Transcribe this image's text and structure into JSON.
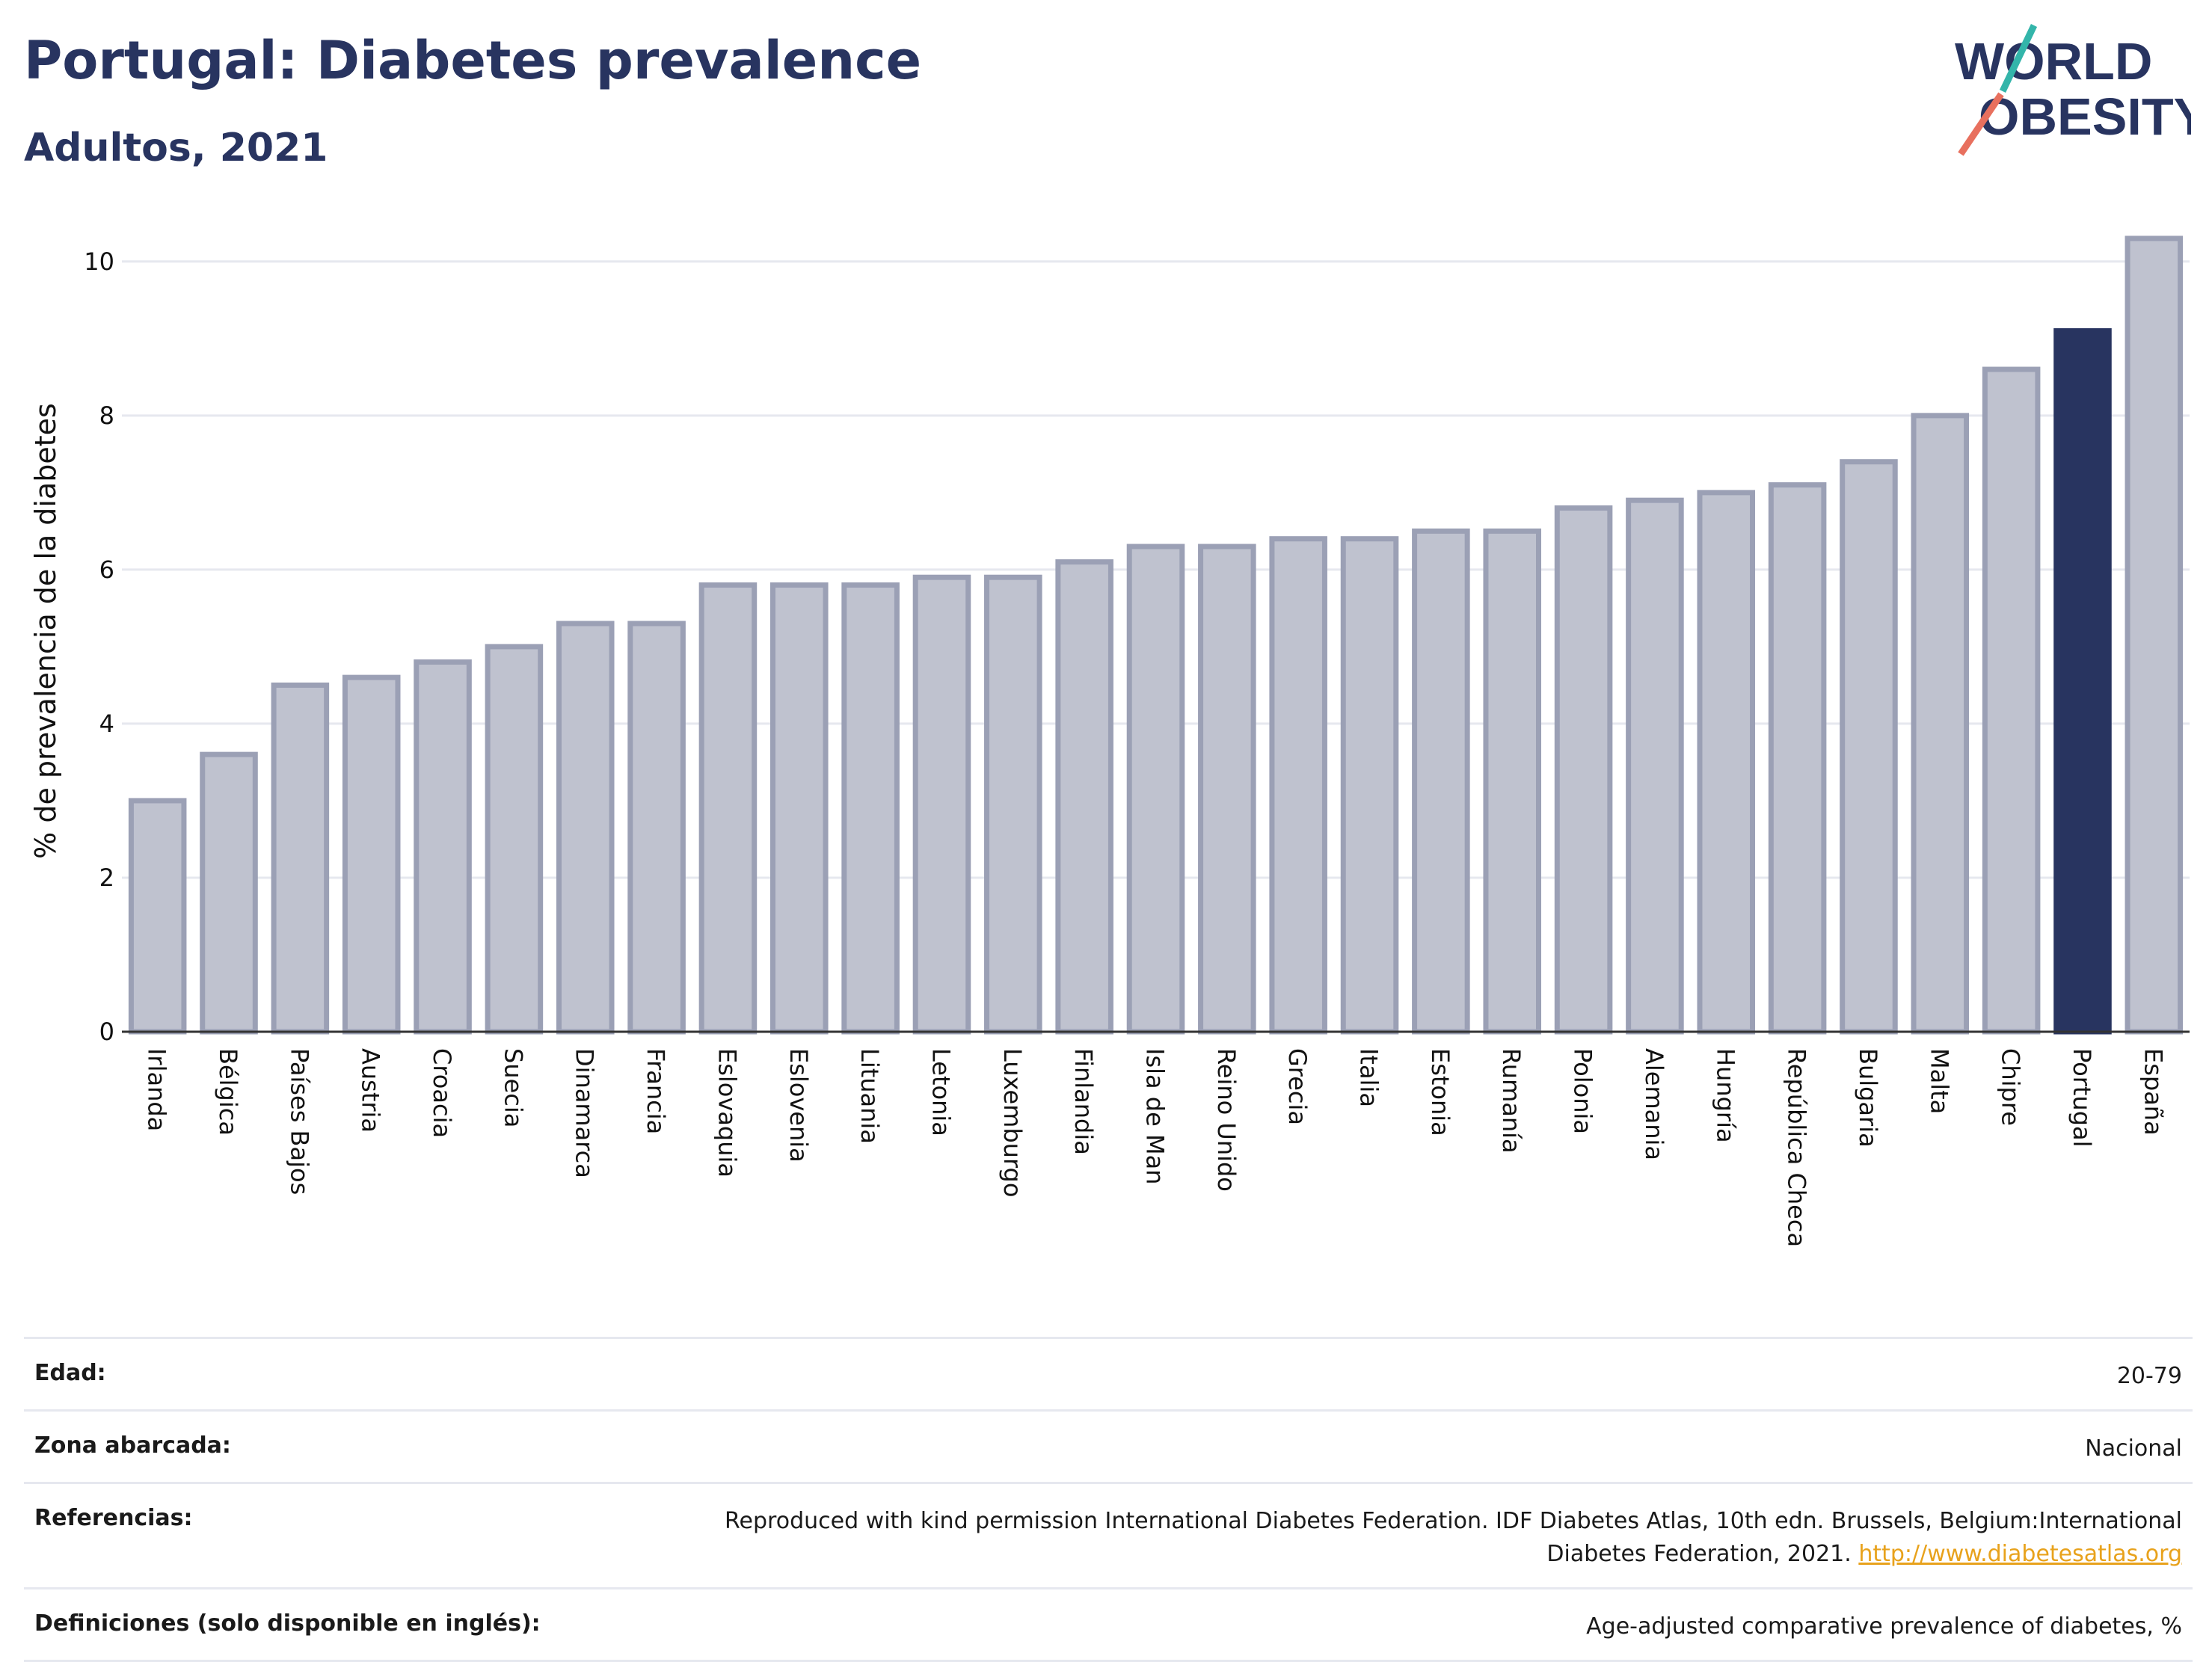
{
  "header": {
    "title": "Portugal: Diabetes prevalence",
    "subtitle": "Adultos, 2021"
  },
  "logo": {
    "line1": "WORLD",
    "line2": "OBESITY",
    "slash_colors": [
      "#33b5aa",
      "#e8705e"
    ],
    "text_color": "#283460"
  },
  "chart_data": {
    "type": "bar",
    "title": "Portugal: Diabetes prevalence",
    "subtitle": "Adultos, 2021",
    "ylabel": "% de prevalencia de la diabetes",
    "xlabel": "",
    "ylim": [
      0,
      10.6
    ],
    "yticks": [
      0,
      2,
      4,
      6,
      8,
      10
    ],
    "grid": true,
    "categories": [
      "Irlanda",
      "Bélgica",
      "Países Bajos",
      "Austria",
      "Croacia",
      "Suecia",
      "Dinamarca",
      "Francia",
      "Eslovaquia",
      "Eslovenia",
      "Lituania",
      "Letonia",
      "Luxemburgo",
      "Finlandia",
      "Isla de Man",
      "Reino Unido",
      "Grecia",
      "Italia",
      "Estonia",
      "Rumanía",
      "Polonia",
      "Alemania",
      "Hungría",
      "República Checa",
      "Bulgaria",
      "Malta",
      "Chipre",
      "Portugal",
      "España"
    ],
    "values": [
      3.0,
      3.6,
      4.5,
      4.6,
      4.8,
      5.0,
      5.3,
      5.3,
      5.8,
      5.8,
      5.8,
      5.9,
      5.9,
      6.1,
      6.3,
      6.3,
      6.4,
      6.4,
      6.5,
      6.5,
      6.8,
      6.9,
      7.0,
      7.1,
      7.4,
      8.0,
      8.6,
      9.1,
      10.3
    ],
    "highlight": "Portugal",
    "colors": {
      "bar_fill": "#bfc2cf",
      "bar_stroke": "#9ba0b5",
      "highlight": "#283460"
    }
  },
  "info": [
    {
      "label": "Edad:",
      "value": "20-79"
    },
    {
      "label": "Zona abarcada:",
      "value": "Nacional"
    },
    {
      "label": "Referencias:",
      "value": "Reproduced with kind permission International Diabetes Federation.  IDF Diabetes Atlas, 10th edn. Brussels, Belgium:International Diabetes Federation, 2021. ",
      "link": "http://www.diabetesatlas.org"
    },
    {
      "label": "Definiciones (solo disponible en inglés):",
      "value": "Age-adjusted comparative prevalence of diabetes, %"
    }
  ]
}
